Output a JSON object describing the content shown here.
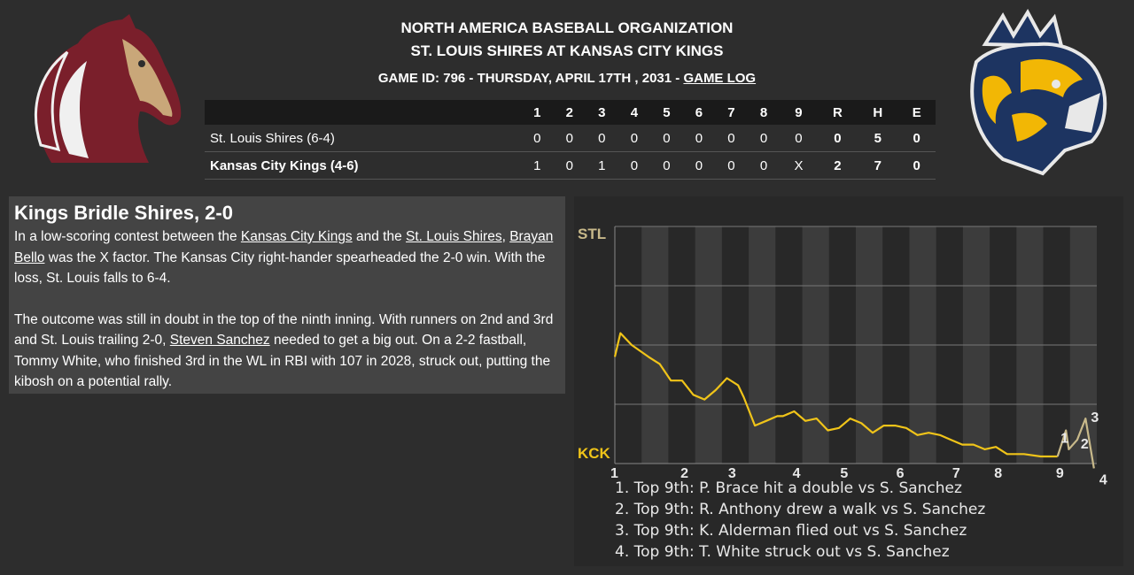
{
  "header": {
    "league": "NORTH AMERICA BASEBALL ORGANIZATION",
    "matchup": "ST. LOUIS SHIRES AT KANSAS CITY KINGS",
    "game_info": "GAME ID: 796 - THURSDAY, APRIL 17TH , 2031 - ",
    "game_log_link": "GAME LOG"
  },
  "logos": {
    "away": "horse-head-logo",
    "home": "lion-crown-logo"
  },
  "linescore": {
    "columns": [
      "1",
      "2",
      "3",
      "4",
      "5",
      "6",
      "7",
      "8",
      "9",
      "R",
      "H",
      "E"
    ],
    "teams": [
      {
        "name": "St. Louis Shires (6-4)",
        "innings": [
          "0",
          "0",
          "0",
          "0",
          "0",
          "0",
          "0",
          "0",
          "0"
        ],
        "R": "0",
        "H": "5",
        "E": "0"
      },
      {
        "name": "Kansas City Kings (4-6)",
        "innings": [
          "1",
          "0",
          "1",
          "0",
          "0",
          "0",
          "0",
          "0",
          "X"
        ],
        "R": "2",
        "H": "7",
        "E": "0"
      }
    ]
  },
  "story": {
    "headline": "Kings Bridle Shires, 2-0",
    "p1_a": "In a low-scoring contest between the ",
    "link_kc": "Kansas City Kings",
    "p1_b": " and the ",
    "link_stl": "St. Louis Shires",
    "p1_c": ", ",
    "link_bello": "Brayan Bello",
    "p1_d": " was the X factor. The Kansas City right-hander spearheaded the 2-0 win. With the loss, St. Louis falls to 6-4.",
    "p2_a": "The outcome was still in doubt in the top of the ninth inning. With runners on 2nd and 3rd and St. Louis trailing 2-0, ",
    "link_sanchez": "Steven Sanchez",
    "p2_b": " needed to get a big out. On a 2-2 fastball, Tommy White, who finished 3rd in the WL in RBI with 107 in 2028, struck out, putting the kibosh on a potential rally."
  },
  "chart_data": {
    "type": "line",
    "top_label": "STL",
    "bottom_label": "KCK",
    "top_color": "#c8b98a",
    "bottom_color": "#f0c419",
    "inning_labels": [
      "1",
      "2",
      "3",
      "4",
      "5",
      "6",
      "7",
      "8",
      "9"
    ],
    "series": [
      {
        "color": "#f0c419",
        "x": [
          1,
          1.1,
          1.3,
          1.6,
          1.8,
          2,
          2.2,
          2.4,
          2.6,
          2.8,
          3,
          3.2,
          3.3,
          3.5,
          3.7,
          3.9,
          4,
          4.2,
          4.4,
          4.6,
          4.8,
          5,
          5.2,
          5.4,
          5.6,
          5.8,
          6,
          6.2,
          6.4,
          6.6,
          6.8,
          7,
          7.2,
          7.4,
          7.6,
          7.8,
          8,
          8.3,
          8.6,
          8.9
        ],
        "y": [
          0.45,
          0.55,
          0.5,
          0.45,
          0.42,
          0.35,
          0.35,
          0.29,
          0.27,
          0.31,
          0.36,
          0.33,
          0.28,
          0.16,
          0.18,
          0.2,
          0.2,
          0.22,
          0.18,
          0.19,
          0.14,
          0.15,
          0.19,
          0.17,
          0.13,
          0.16,
          0.16,
          0.15,
          0.12,
          0.13,
          0.12,
          0.1,
          0.08,
          0.08,
          0.06,
          0.07,
          0.04,
          0.04,
          0.03,
          0.03
        ]
      },
      {
        "color": "#c8b98a",
        "x": [
          8.9,
          9.05,
          9.1,
          9.25,
          9.4,
          9.55
        ],
        "y": [
          0.03,
          0.14,
          0.06,
          0.1,
          0.19,
          -0.02
        ]
      }
    ],
    "event_markers": [
      "1",
      "2",
      "3",
      "4"
    ],
    "annotations": [
      "1. Top 9th: P. Brace hit a double vs S. Sanchez",
      "2. Top 9th: R. Anthony drew a walk vs S. Sanchez",
      "3. Top 9th: K. Alderman flied out vs S. Sanchez",
      "4. Top 9th: T. White struck out vs S. Sanchez"
    ]
  }
}
